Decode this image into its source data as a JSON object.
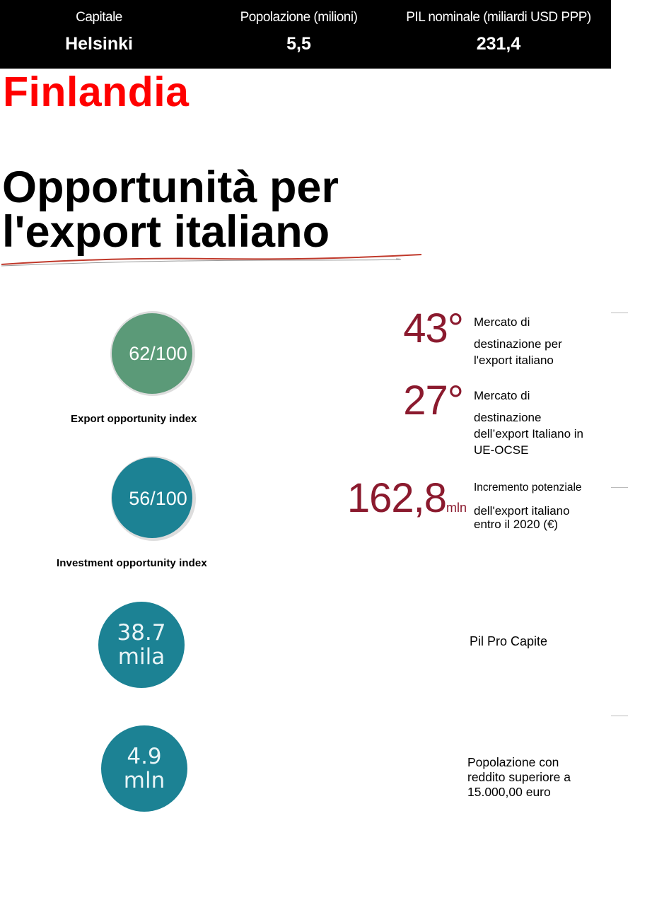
{
  "header": {
    "capital": {
      "label": "Capitale",
      "value": "Helsinki"
    },
    "population": {
      "label": "Popolazione (milioni)",
      "value": "5,5"
    },
    "gdp": {
      "label": "PIL nominale (miliardi USD PPP)",
      "value": "231,4"
    }
  },
  "country": "Finlandia",
  "headline_line1": "Opportunità per",
  "headline_line2": "l'export italiano",
  "indices": [
    {
      "value": "62/100",
      "score": 62,
      "color": "#5b9a78",
      "label": "Export opportunity index"
    },
    {
      "value": "56/100",
      "score": 56,
      "color": "#1c8294",
      "label": "Investment opportunity index"
    }
  ],
  "stats": [
    {
      "line1": "38.7",
      "line2": "mila",
      "label": "Pil Pro Capite"
    },
    {
      "line1": "4.9",
      "line2": "mln",
      "label_lines": [
        "Popolazione con",
        "reddito superiore a",
        "15.000,00 euro"
      ]
    }
  ],
  "ranks": [
    {
      "value": "43°",
      "desc_lines": [
        "Mercato di",
        "destinazione per",
        "l'export italiano"
      ]
    },
    {
      "value": "27°",
      "desc_lines": [
        "Mercato di",
        "destinazione",
        "dell’export Italiano in",
        "UE-OCSE"
      ]
    },
    {
      "value": "162,8",
      "unit": "mln",
      "desc_lines": [
        "Incremento potenziale",
        "dell'export italiano",
        "entro il 2020 (€)"
      ]
    }
  ],
  "colors": {
    "accent_red": "#ff0000",
    "rank_color": "#8b1a2e",
    "teal": "#1c8294",
    "green": "#5b9a78"
  }
}
